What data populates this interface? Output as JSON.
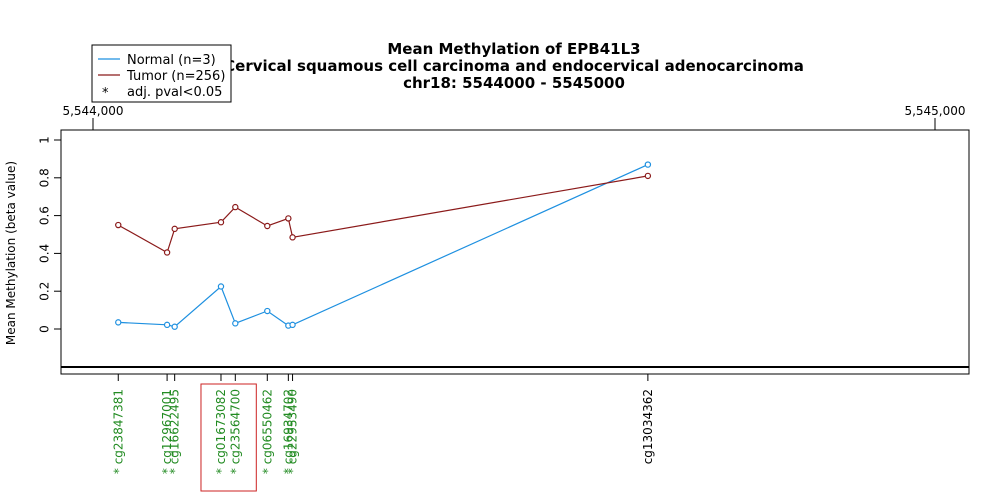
{
  "chart_data": {
    "type": "line",
    "title": [
      "Mean Methylation of EPB41L3",
      "Cervical squamous cell carcinoma and endocervical adenocarcinoma",
      "chr18: 5544000 - 5545000"
    ],
    "xlabel": "",
    "ylabel": "Mean Methylation (beta value)",
    "xlim": [
      5544000,
      5545000
    ],
    "ylim": [
      0,
      1
    ],
    "x_tick_labels": [
      "5,544,000",
      "5,545,000"
    ],
    "x_ticks": [
      5544000,
      5545000
    ],
    "y_ticks": [
      0,
      0.2,
      0.4,
      0.6,
      0.8,
      1
    ],
    "y_tick_labels": [
      "0",
      "0.2",
      "0.4",
      "0.6",
      "0.8",
      "1"
    ],
    "legend": {
      "placement": "top-left",
      "entries": [
        {
          "label": "Normal (n=3)",
          "color": "#1e90e0",
          "kind": "line"
        },
        {
          "label": "Tumor (n=256)",
          "color": "#8b1a1a",
          "kind": "line"
        },
        {
          "label": "adj. pval<0.05",
          "symbol": "*",
          "kind": "symbol"
        }
      ]
    },
    "x": [
      5544030,
      5544088,
      5544097,
      5544152,
      5544169,
      5544207,
      5544232,
      5544237,
      5544659
    ],
    "probes": [
      "cg23847381",
      "cg12967001",
      "cg16622495",
      "cg01673082",
      "cg23564700",
      "cg06550462",
      "cg16934702",
      "cg22953490",
      "cg13034362"
    ],
    "significant": [
      true,
      true,
      true,
      true,
      true,
      true,
      true,
      true,
      false
    ],
    "highlighted_probes": [
      "cg01673082",
      "cg23564700"
    ],
    "series": [
      {
        "name": "Normal (n=3)",
        "color": "#1e90e0",
        "values": [
          0.035,
          0.022,
          0.012,
          0.225,
          0.03,
          0.095,
          0.018,
          0.022,
          0.87
        ]
      },
      {
        "name": "Tumor (n=256)",
        "color": "#8b1a1a",
        "values": [
          0.55,
          0.405,
          0.53,
          0.565,
          0.645,
          0.545,
          0.585,
          0.485,
          0.81
        ]
      }
    ],
    "significant_color": "#228b22",
    "highlight_color": "#cc2222",
    "grid": false
  }
}
